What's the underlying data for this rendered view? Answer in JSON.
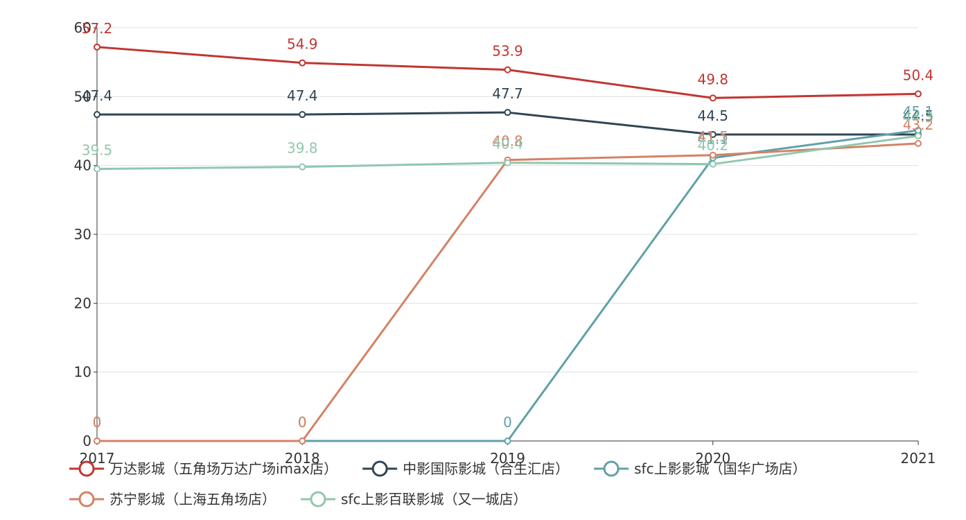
{
  "chart_data": {
    "type": "line",
    "title": "",
    "xlabel": "",
    "ylabel": "",
    "x": [
      "2017",
      "2018",
      "2019",
      "2020",
      "2021"
    ],
    "ylim": [
      0,
      60
    ],
    "yticks": [
      0,
      10,
      20,
      30,
      40,
      50,
      60
    ],
    "grid": "horizontal",
    "legend_position": "bottom-left",
    "series": [
      {
        "name": "万达影城（五角场万达广场imax店）",
        "color": "#c23531",
        "values": [
          57.2,
          54.9,
          53.9,
          49.8,
          50.4
        ]
      },
      {
        "name": "中影国际影城（合生汇店）",
        "color": "#2f4554",
        "values": [
          47.4,
          47.4,
          47.7,
          44.5,
          44.5
        ]
      },
      {
        "name": "sfc上影影城（国华广场店）",
        "color": "#61a0a8",
        "values": [
          0,
          0,
          0,
          41.1,
          45.1
        ]
      },
      {
        "name": "苏宁影城（上海五角场店）",
        "color": "#d48265",
        "values": [
          0,
          0,
          40.8,
          41.5,
          43.2
        ]
      },
      {
        "name": "sfc上影百联影城（又一城店）",
        "color": "#91c7ae",
        "values": [
          39.5,
          39.8,
          40.4,
          40.2,
          44.3
        ]
      }
    ]
  }
}
